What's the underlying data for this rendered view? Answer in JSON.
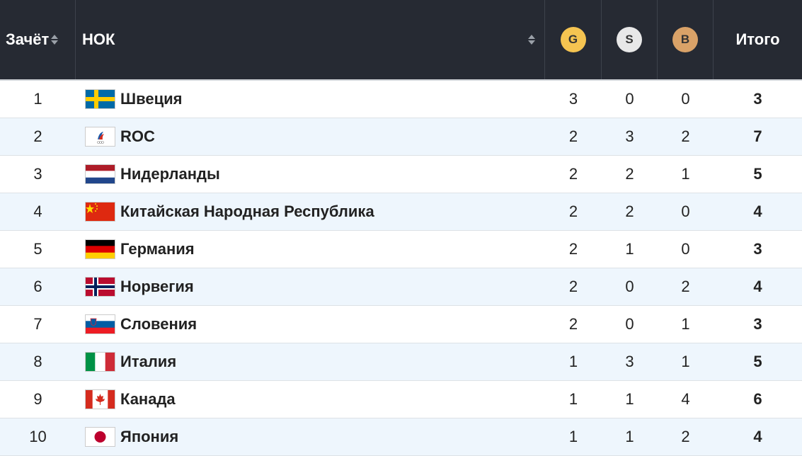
{
  "header": {
    "rank": "Зачёт",
    "noc": "НОК",
    "gold": "G",
    "silver": "S",
    "bronze": "B",
    "total": "Итого"
  },
  "table": {
    "rows": [
      [
        "1",
        "Швеция",
        "3",
        "0",
        "0",
        "3"
      ],
      [
        "2",
        "ROC",
        "2",
        "3",
        "2",
        "7"
      ],
      [
        "3",
        "Нидерланды",
        "2",
        "2",
        "1",
        "5"
      ],
      [
        "4",
        "Китайская Народная Республика",
        "2",
        "2",
        "0",
        "4"
      ],
      [
        "5",
        "Германия",
        "2",
        "1",
        "0",
        "3"
      ],
      [
        "6",
        "Норвегия",
        "2",
        "0",
        "2",
        "4"
      ],
      [
        "7",
        "Словения",
        "2",
        "0",
        "1",
        "3"
      ],
      [
        "8",
        "Италия",
        "1",
        "3",
        "1",
        "5"
      ],
      [
        "9",
        "Канада",
        "1",
        "1",
        "4",
        "6"
      ],
      [
        "10",
        "Япония",
        "1",
        "1",
        "2",
        "4"
      ]
    ]
  }
}
